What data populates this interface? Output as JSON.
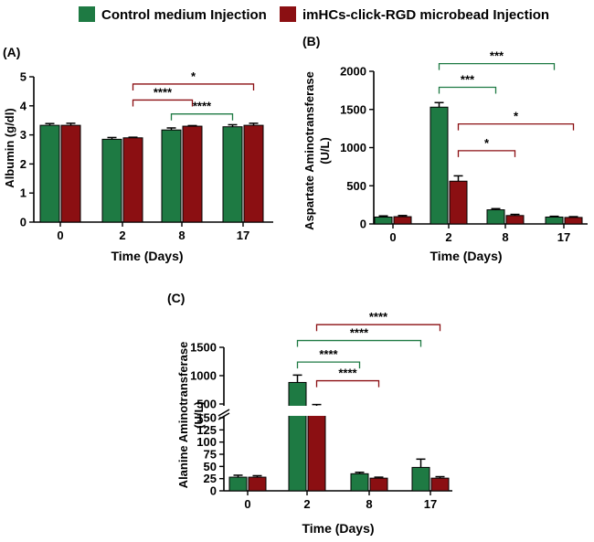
{
  "legend": [
    {
      "label": "Control medium Injection",
      "color": "#1e7a43"
    },
    {
      "label": "imHCs-click-RGD microbead Injection",
      "color": "#8b0f12"
    }
  ],
  "colors": {
    "control": "#1e7a43",
    "treated": "#8b0f12"
  },
  "chart_data": [
    {
      "panel": "(A)",
      "type": "bar",
      "categories": [
        "0",
        "2",
        "8",
        "17"
      ],
      "xlabel": "Time (Days)",
      "ylabel": "Albumin (g/dl)",
      "ylim": [
        0,
        5
      ],
      "yticks": [
        "0",
        "1",
        "2",
        "3",
        "4",
        "5"
      ],
      "series": [
        {
          "name": "Control medium Injection",
          "values": [
            3.33,
            2.85,
            3.17,
            3.28
          ],
          "errors": [
            0.06,
            0.06,
            0.07,
            0.07
          ]
        },
        {
          "name": "imHCs-click-RGD microbead Injection",
          "values": [
            3.33,
            2.9,
            3.3,
            3.33
          ],
          "errors": [
            0.07,
            0.02,
            0.02,
            0.07
          ]
        }
      ],
      "significance": [
        {
          "from": [
            1,
            1
          ],
          "to": [
            3,
            1
          ],
          "label": "*",
          "color": "#8b0f12",
          "y": 4.75
        },
        {
          "from": [
            1,
            1
          ],
          "to": [
            2,
            1
          ],
          "label": "****",
          "color": "#8b0f12",
          "y": 4.2
        },
        {
          "from": [
            2,
            0
          ],
          "to": [
            3,
            0
          ],
          "label": "****",
          "color": "#1e7a43",
          "y": 3.72
        }
      ]
    },
    {
      "panel": "(B)",
      "type": "bar",
      "categories": [
        "0",
        "2",
        "8",
        "17"
      ],
      "xlabel": "Time (Days)",
      "ylabel": "Aspartate Aminotransferase (U/L)",
      "ylim": [
        0,
        2000
      ],
      "yticks": [
        "0",
        "500",
        "1000",
        "1500",
        "2000"
      ],
      "series": [
        {
          "name": "Control medium Injection",
          "values": [
            90,
            1530,
            185,
            90
          ],
          "errors": [
            15,
            60,
            15,
            10
          ]
        },
        {
          "name": "imHCs-click-RGD microbead Injection",
          "values": [
            95,
            560,
            110,
            85
          ],
          "errors": [
            15,
            70,
            15,
            10
          ]
        }
      ],
      "significance": [
        {
          "from": [
            1,
            0
          ],
          "to": [
            3,
            0
          ],
          "label": "***",
          "color": "#1e7a43",
          "y": 2100
        },
        {
          "from": [
            1,
            0
          ],
          "to": [
            2,
            0
          ],
          "label": "***",
          "color": "#1e7a43",
          "y": 1790
        },
        {
          "from": [
            1,
            1
          ],
          "to": [
            3,
            1
          ],
          "label": "*",
          "color": "#8b0f12",
          "y": 1310
        },
        {
          "from": [
            1,
            1
          ],
          "to": [
            2,
            1
          ],
          "label": "*",
          "color": "#8b0f12",
          "y": 960
        }
      ]
    },
    {
      "panel": "(C)",
      "type": "bar",
      "categories": [
        "0",
        "2",
        "8",
        "17"
      ],
      "xlabel": "Time (Days)",
      "ylabel": "Alanine Aminotransferase (U/L)",
      "axis_break": [
        150,
        500
      ],
      "yticks": [
        "0",
        "25",
        "50",
        "75",
        "100",
        "125",
        "150",
        "500",
        "1000",
        "1500"
      ],
      "series": [
        {
          "name": "Control medium Injection",
          "values": [
            28,
            880,
            35,
            48
          ],
          "errors": [
            4,
            130,
            3,
            17
          ]
        },
        {
          "name": "imHCs-click-RGD microbead Injection",
          "values": [
            28,
            430,
            26,
            26
          ],
          "errors": [
            3,
            60,
            2,
            3
          ]
        }
      ],
      "significance": [
        {
          "from": [
            1,
            1
          ],
          "to": [
            3,
            1
          ],
          "label": "****",
          "color": "#8b0f12",
          "y": 1900
        },
        {
          "from": [
            1,
            0
          ],
          "to": [
            3,
            0
          ],
          "label": "****",
          "color": "#1e7a43",
          "y": 1620
        },
        {
          "from": [
            1,
            0
          ],
          "to": [
            2,
            0
          ],
          "label": "****",
          "color": "#1e7a43",
          "y": 1240
        },
        {
          "from": [
            1,
            1
          ],
          "to": [
            2,
            1
          ],
          "label": "****",
          "color": "#8b0f12",
          "y": 910
        }
      ]
    }
  ]
}
